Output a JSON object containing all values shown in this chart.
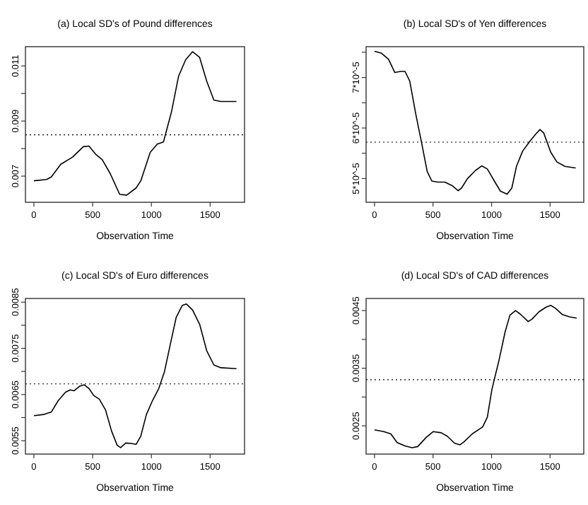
{
  "chart_data": [
    {
      "type": "line",
      "title": "(a) Local SD's of Pound differences",
      "xlabel": "Observation Time",
      "xlim": [
        -72,
        1793
      ],
      "xticks": [
        0,
        500,
        1000,
        1500
      ],
      "ylim": [
        0.00605,
        0.0117
      ],
      "yticks": [
        0.007,
        {
          "value": 0.008,
          "label": null
        },
        0.009,
        {
          "value": 0.01,
          "label": null
        },
        0.011
      ],
      "ref_lines": [
        {
          "axis": "y",
          "value": 0.0085,
          "line_style": "dotted"
        }
      ],
      "series": [
        {
          "color": "#000000",
          "x": [
            0,
            108,
            148,
            229,
            329,
            421,
            469,
            529,
            581,
            650,
            730,
            790,
            870,
            910,
            990,
            1050,
            1103,
            1171,
            1231,
            1291,
            1351,
            1411,
            1471,
            1532,
            1592,
            1724
          ],
          "values": [
            0.00683,
            0.00688,
            0.00697,
            0.00743,
            0.00769,
            0.00807,
            0.00809,
            0.00778,
            0.0076,
            0.00709,
            0.00634,
            0.00631,
            0.00657,
            0.00683,
            0.00786,
            0.00816,
            0.00824,
            0.00933,
            0.01062,
            0.01122,
            0.01152,
            0.01131,
            0.01045,
            0.00976,
            0.00971,
            0.00971
          ]
        }
      ]
    },
    {
      "type": "line",
      "title": "(b) Local SD's of Yen differences",
      "xlabel": "Observation Time",
      "xlim": [
        -72,
        1788
      ],
      "xticks": [
        0,
        500,
        1000,
        1500
      ],
      "ylim": [
        4.53e-05,
        7.61e-05
      ],
      "yticks": [
        {
          "value": 5e-05,
          "label": "5*10^-5"
        },
        {
          "value": 5.5e-05,
          "label": null
        },
        {
          "value": 6e-05,
          "label": "6*10^-5"
        },
        {
          "value": 6.5e-05,
          "label": null
        },
        {
          "value": 7e-05,
          "label": "7*10^-5"
        },
        {
          "value": 7.5e-05,
          "label": null
        }
      ],
      "ref_lines": [
        {
          "axis": "y",
          "value": 5.72e-05,
          "line_style": "dotted"
        }
      ],
      "series": [
        {
          "color": "#000000",
          "x": [
            0,
            60,
            120,
            173,
            221,
            261,
            301,
            353,
            402,
            450,
            490,
            542,
            602,
            663,
            715,
            743,
            795,
            863,
            916,
            964,
            1024,
            1076,
            1133,
            1173,
            1213,
            1265,
            1325,
            1378,
            1414,
            1446,
            1506,
            1558,
            1627,
            1719
          ],
          "values": [
            7.52e-05,
            7.48e-05,
            7.36e-05,
            7.1e-05,
            7.12e-05,
            7.12e-05,
            6.93e-05,
            6.27e-05,
            5.71e-05,
            5.14e-05,
            4.95e-05,
            4.93e-05,
            4.93e-05,
            4.86e-05,
            4.76e-05,
            4.81e-05,
            5e-05,
            5.16e-05,
            5.25e-05,
            5.19e-05,
            4.95e-05,
            4.75e-05,
            4.69e-05,
            4.81e-05,
            5.24e-05,
            5.54e-05,
            5.73e-05,
            5.88e-05,
            5.97e-05,
            5.9e-05,
            5.52e-05,
            5.33e-05,
            5.24e-05,
            5.21e-05
          ]
        }
      ]
    },
    {
      "type": "line",
      "title": "(c) Local SD's of Euro differences",
      "xlabel": "Observation Time",
      "xlim": [
        -72,
        1793
      ],
      "xticks": [
        0,
        500,
        1000,
        1500
      ],
      "ylim": [
        0.00521,
        0.00858
      ],
      "yticks": [
        0.0055,
        {
          "value": 0.006,
          "label": null
        },
        0.0065,
        {
          "value": 0.007,
          "label": null
        },
        0.0075,
        {
          "value": 0.008,
          "label": null
        },
        0.0085
      ],
      "ref_lines": [
        {
          "axis": "y",
          "value": 0.00673,
          "line_style": "dotted"
        }
      ],
      "series": [
        {
          "color": "#000000",
          "x": [
            0,
            88,
            148,
            208,
            269,
            309,
            341,
            389,
            429,
            469,
            509,
            557,
            609,
            661,
            709,
            738,
            782,
            830,
            870,
            910,
            958,
            1010,
            1063,
            1111,
            1159,
            1211,
            1263,
            1299,
            1351,
            1411,
            1471,
            1532,
            1592,
            1724
          ],
          "values": [
            0.00604,
            0.00607,
            0.00612,
            0.00637,
            0.00655,
            0.0066,
            0.00658,
            0.00668,
            0.00671,
            0.00663,
            0.00648,
            0.0064,
            0.00617,
            0.00571,
            0.0054,
            0.00535,
            0.00545,
            0.00544,
            0.00542,
            0.0056,
            0.00607,
            0.00637,
            0.00663,
            0.00699,
            0.00756,
            0.00817,
            0.00843,
            0.00846,
            0.00833,
            0.00802,
            0.00745,
            0.00714,
            0.00708,
            0.00706
          ]
        }
      ]
    },
    {
      "type": "line",
      "title": "(d) Local SD's of CAD differences",
      "xlabel": "Observation Time",
      "xlim": [
        -72,
        1788
      ],
      "xticks": [
        0,
        500,
        1000,
        1500
      ],
      "ylim": [
        0.00201,
        0.00471
      ],
      "yticks": [
        0.0025,
        {
          "value": 0.003,
          "label": null
        },
        0.0035,
        {
          "value": 0.004,
          "label": null
        },
        0.0045
      ],
      "ref_lines": [
        {
          "axis": "y",
          "value": 0.0033,
          "line_style": "dotted"
        }
      ],
      "series": [
        {
          "color": "#000000",
          "x": [
            0,
            80,
            140,
            193,
            261,
            321,
            369,
            442,
            502,
            570,
            622,
            683,
            731,
            763,
            835,
            924,
            964,
            1004,
            1064,
            1116,
            1157,
            1205,
            1245,
            1313,
            1345,
            1406,
            1466,
            1506,
            1546,
            1606,
            1667,
            1727
          ],
          "values": [
            0.00243,
            0.0024,
            0.00236,
            0.00221,
            0.00215,
            0.00212,
            0.00214,
            0.0023,
            0.0024,
            0.00238,
            0.00232,
            0.0022,
            0.00217,
            0.00222,
            0.00236,
            0.00248,
            0.00265,
            0.00314,
            0.00364,
            0.00413,
            0.00442,
            0.0045,
            0.00444,
            0.00431,
            0.00435,
            0.00448,
            0.00456,
            0.00459,
            0.00454,
            0.00443,
            0.00439,
            0.00437
          ]
        }
      ]
    }
  ]
}
